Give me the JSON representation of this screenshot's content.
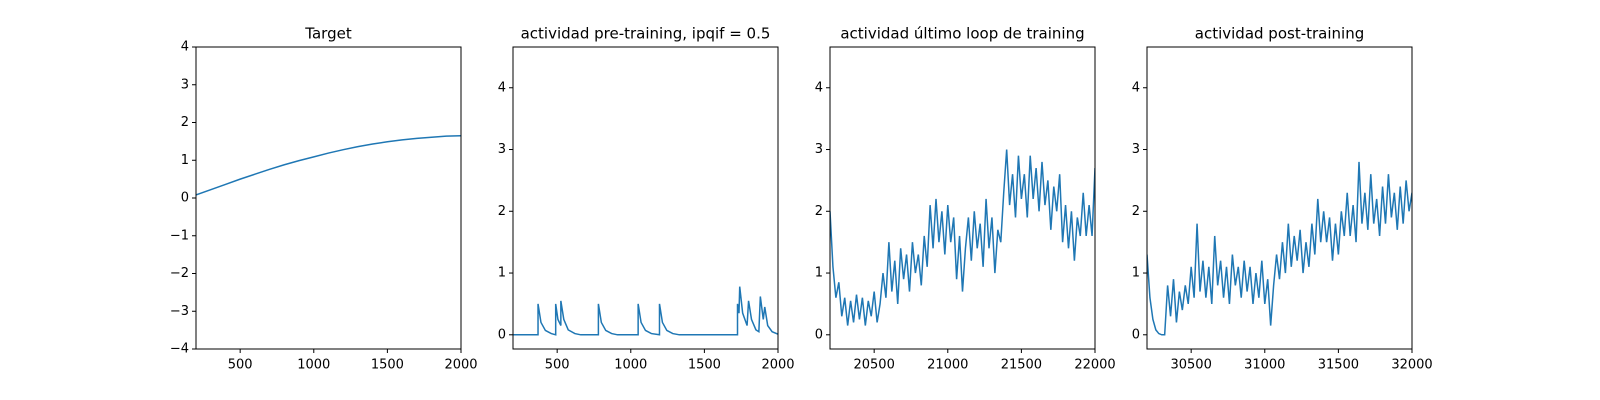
{
  "chart_data": [
    {
      "type": "line",
      "title": "Target",
      "color": "#1f77b4",
      "x": [
        200,
        300,
        400,
        500,
        600,
        700,
        800,
        900,
        1000,
        1100,
        1200,
        1300,
        1400,
        1500,
        1600,
        1700,
        1800,
        1900,
        2000
      ],
      "values": [
        0.08,
        0.22,
        0.36,
        0.5,
        0.63,
        0.76,
        0.88,
        0.99,
        1.09,
        1.19,
        1.28,
        1.36,
        1.43,
        1.49,
        1.54,
        1.58,
        1.61,
        1.64,
        1.65
      ],
      "xlim": [
        200,
        2000
      ],
      "xticks": [
        500,
        1000,
        1500,
        2000
      ],
      "ylim": [
        -4,
        4
      ],
      "yticks": [
        {
          "value": -4,
          "label": "−4"
        },
        {
          "value": -3,
          "label": "−3"
        },
        {
          "value": -2,
          "label": "−2"
        },
        {
          "value": -1,
          "label": "−1"
        },
        0,
        1,
        2,
        3,
        4
      ]
    },
    {
      "type": "line",
      "title": "actividad pre-training, ipqif = 0.5",
      "color": "#1f77b4",
      "x": [
        200,
        370,
        370,
        390,
        420,
        460,
        490,
        490,
        505,
        525,
        525,
        545,
        575,
        620,
        660,
        780,
        780,
        800,
        830,
        870,
        910,
        1050,
        1050,
        1070,
        1100,
        1140,
        1195,
        1195,
        1215,
        1245,
        1285,
        1330,
        1725,
        1725,
        1735,
        1740,
        1760,
        1790,
        1800,
        1820,
        1850,
        1870,
        1880,
        1900,
        1910,
        1930,
        1960,
        2000
      ],
      "values": [
        0,
        0,
        0.5,
        0.2,
        0.07,
        0.02,
        0,
        0.5,
        0.25,
        0.15,
        0.55,
        0.25,
        0.08,
        0.02,
        0,
        0,
        0.5,
        0.2,
        0.07,
        0.02,
        0,
        0,
        0.5,
        0.2,
        0.07,
        0.02,
        0,
        0.5,
        0.2,
        0.07,
        0.02,
        0,
        0,
        0.5,
        0.35,
        0.78,
        0.35,
        0.15,
        0.55,
        0.25,
        0.08,
        0.05,
        0.62,
        0.25,
        0.45,
        0.15,
        0.05,
        0.01
      ],
      "xlim": [
        200,
        2000
      ],
      "xticks": [
        500,
        1000,
        1500,
        2000
      ],
      "ylim": [
        -0.23,
        4.66
      ],
      "yticks": [
        0,
        1,
        2,
        3,
        4
      ]
    },
    {
      "type": "line",
      "title": "actividad último loop de training",
      "color": "#1f77b4",
      "x": [
        20200,
        20220,
        20240,
        20260,
        20280,
        20300,
        20320,
        20340,
        20360,
        20380,
        20400,
        20420,
        20440,
        20460,
        20480,
        20500,
        20520,
        20540,
        20560,
        20580,
        20600,
        20620,
        20640,
        20660,
        20680,
        20700,
        20720,
        20740,
        20760,
        20780,
        20800,
        20820,
        20840,
        20860,
        20880,
        20900,
        20920,
        20940,
        20960,
        20980,
        21000,
        21020,
        21040,
        21060,
        21080,
        21100,
        21120,
        21140,
        21160,
        21180,
        21200,
        21220,
        21240,
        21260,
        21280,
        21300,
        21320,
        21340,
        21360,
        21380,
        21400,
        21420,
        21440,
        21460,
        21480,
        21500,
        21520,
        21540,
        21560,
        21580,
        21600,
        21620,
        21640,
        21660,
        21680,
        21700,
        21720,
        21740,
        21760,
        21780,
        21800,
        21820,
        21840,
        21860,
        21880,
        21900,
        21920,
        21940,
        21960,
        21980,
        22000
      ],
      "values": [
        2.0,
        1.1,
        0.6,
        0.85,
        0.3,
        0.6,
        0.15,
        0.55,
        0.2,
        0.65,
        0.25,
        0.6,
        0.15,
        0.55,
        0.3,
        0.7,
        0.2,
        0.5,
        1.0,
        0.6,
        1.5,
        0.7,
        1.2,
        0.5,
        1.4,
        0.9,
        1.3,
        0.7,
        1.5,
        1.0,
        1.3,
        0.8,
        1.6,
        1.1,
        2.1,
        1.4,
        2.2,
        1.5,
        2.0,
        1.3,
        2.1,
        1.5,
        1.9,
        0.9,
        1.6,
        0.7,
        1.4,
        1.9,
        1.2,
        2.0,
        1.4,
        1.8,
        1.1,
        2.2,
        1.4,
        1.9,
        1.0,
        1.7,
        1.5,
        2.3,
        3.0,
        2.1,
        2.6,
        1.9,
        2.9,
        2.2,
        2.6,
        1.9,
        2.9,
        2.2,
        2.7,
        2.0,
        2.8,
        2.1,
        2.5,
        1.7,
        2.4,
        2.0,
        2.6,
        1.5,
        2.1,
        1.4,
        2.0,
        1.2,
        1.9,
        1.6,
        2.3,
        1.6,
        2.1,
        1.6,
        2.7
      ],
      "xlim": [
        20200,
        22000
      ],
      "xticks": [
        20500,
        21000,
        21500,
        22000
      ],
      "ylim": [
        -0.23,
        4.66
      ],
      "yticks": [
        0,
        1,
        2,
        3,
        4
      ]
    },
    {
      "type": "line",
      "title": "actividad post-training",
      "color": "#1f77b4",
      "x": [
        30200,
        30220,
        30240,
        30260,
        30280,
        30300,
        30320,
        30340,
        30360,
        30380,
        30400,
        30420,
        30440,
        30460,
        30480,
        30500,
        30520,
        30540,
        30560,
        30580,
        30600,
        30620,
        30640,
        30660,
        30680,
        30700,
        30720,
        30740,
        30760,
        30780,
        30800,
        30820,
        30840,
        30860,
        30880,
        30900,
        30920,
        30940,
        30960,
        30980,
        31000,
        31020,
        31040,
        31060,
        31080,
        31100,
        31120,
        31140,
        31160,
        31180,
        31200,
        31220,
        31240,
        31260,
        31280,
        31300,
        31320,
        31340,
        31360,
        31380,
        31400,
        31420,
        31440,
        31460,
        31480,
        31500,
        31520,
        31540,
        31560,
        31580,
        31600,
        31620,
        31640,
        31660,
        31680,
        31700,
        31720,
        31740,
        31760,
        31780,
        31800,
        31820,
        31840,
        31860,
        31880,
        31900,
        31920,
        31940,
        31960,
        31980,
        32000
      ],
      "values": [
        1.3,
        0.6,
        0.25,
        0.08,
        0.02,
        0.0,
        0.0,
        0.8,
        0.3,
        0.9,
        0.2,
        0.7,
        0.4,
        0.8,
        0.5,
        1.1,
        0.6,
        1.8,
        0.7,
        1.2,
        0.6,
        1.1,
        0.5,
        1.6,
        0.8,
        1.2,
        0.6,
        1.1,
        0.5,
        1.3,
        0.8,
        1.1,
        0.6,
        1.2,
        0.7,
        1.1,
        0.5,
        1.0,
        0.6,
        1.2,
        0.5,
        0.9,
        0.15,
        0.8,
        1.3,
        0.9,
        1.5,
        1.0,
        1.8,
        1.1,
        1.6,
        1.2,
        1.7,
        1.0,
        1.5,
        1.1,
        1.8,
        1.3,
        2.2,
        1.5,
        2.0,
        1.5,
        1.9,
        1.2,
        1.8,
        1.3,
        2.0,
        1.6,
        2.3,
        1.6,
        2.1,
        1.5,
        2.8,
        1.8,
        2.3,
        1.7,
        2.6,
        1.8,
        2.2,
        1.6,
        2.4,
        1.8,
        2.6,
        1.9,
        2.3,
        1.7,
        2.4,
        1.8,
        2.5,
        2.0,
        2.3
      ],
      "xlim": [
        30200,
        32000
      ],
      "xticks": [
        30500,
        31000,
        31500,
        32000
      ],
      "ylim": [
        -0.23,
        4.66
      ],
      "yticks": [
        0,
        1,
        2,
        3,
        4
      ]
    }
  ]
}
